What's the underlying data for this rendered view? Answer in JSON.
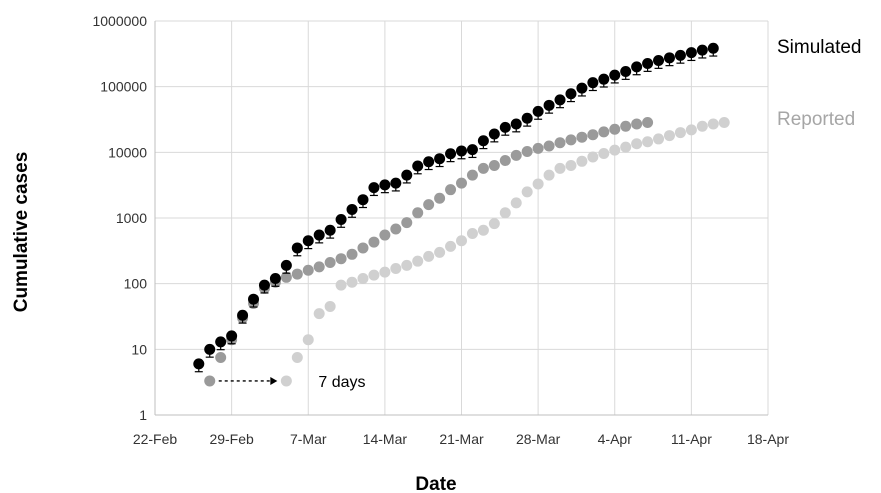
{
  "chart_data": {
    "type": "scatter",
    "title": "",
    "xlabel": "Date",
    "ylabel": "Cumulative cases",
    "yscale": "log",
    "ylim": [
      1,
      1000000
    ],
    "xlim": [
      "2020-02-22",
      "2020-04-18"
    ],
    "grid": true,
    "y_ticks": [
      "1",
      "10",
      "100",
      "1000",
      "10000",
      "100000",
      "1000000"
    ],
    "x_ticks": [
      "22-Feb",
      "29-Feb",
      "7-Mar",
      "14-Mar",
      "21-Mar",
      "28-Mar",
      "4-Apr",
      "11-Apr",
      "18-Apr"
    ],
    "legend_labels": [
      {
        "text": "Simulated",
        "color": "#000000"
      },
      {
        "text": "Reported",
        "color": "#a6a6a6"
      }
    ],
    "annotation": {
      "text": "7 days",
      "from": "2020-02-27",
      "to": "2020-03-05",
      "y": 3.3
    },
    "series": [
      {
        "color": "#000000",
        "error_bars": true,
        "points": [
          [
            "2020-02-26",
            6
          ],
          [
            "2020-02-27",
            10
          ],
          [
            "2020-02-28",
            13
          ],
          [
            "2020-02-29",
            16
          ],
          [
            "2020-03-01",
            33
          ],
          [
            "2020-03-02",
            58
          ],
          [
            "2020-03-03",
            95
          ],
          [
            "2020-03-04",
            120
          ],
          [
            "2020-03-05",
            190
          ],
          [
            "2020-03-06",
            350
          ],
          [
            "2020-03-07",
            450
          ],
          [
            "2020-03-08",
            550
          ],
          [
            "2020-03-09",
            650
          ],
          [
            "2020-03-10",
            950
          ],
          [
            "2020-03-11",
            1350
          ],
          [
            "2020-03-12",
            1900
          ],
          [
            "2020-03-13",
            2900
          ],
          [
            "2020-03-14",
            3200
          ],
          [
            "2020-03-15",
            3400
          ],
          [
            "2020-03-16",
            4500
          ],
          [
            "2020-03-17",
            6200
          ],
          [
            "2020-03-18",
            7200
          ],
          [
            "2020-03-19",
            8000
          ],
          [
            "2020-03-20",
            9500
          ],
          [
            "2020-03-21",
            10500
          ],
          [
            "2020-03-22",
            11000
          ],
          [
            "2020-03-23",
            15000
          ],
          [
            "2020-03-24",
            19000
          ],
          [
            "2020-03-25",
            24000
          ],
          [
            "2020-03-26",
            27000
          ],
          [
            "2020-03-27",
            33000
          ],
          [
            "2020-03-28",
            42000
          ],
          [
            "2020-03-29",
            52000
          ],
          [
            "2020-03-30",
            63000
          ],
          [
            "2020-03-31",
            78000
          ],
          [
            "2020-04-01",
            95000
          ],
          [
            "2020-04-02",
            115000
          ],
          [
            "2020-04-03",
            130000
          ],
          [
            "2020-04-04",
            150000
          ],
          [
            "2020-04-05",
            170000
          ],
          [
            "2020-04-06",
            200000
          ],
          [
            "2020-04-07",
            225000
          ],
          [
            "2020-04-08",
            250000
          ],
          [
            "2020-04-09",
            275000
          ],
          [
            "2020-04-10",
            300000
          ],
          [
            "2020-04-11",
            330000
          ],
          [
            "2020-04-12",
            360000
          ],
          [
            "2020-04-13",
            385000
          ]
        ]
      },
      {
        "color": "#9a9a9a",
        "error_bars": false,
        "points": [
          [
            "2020-02-27",
            3.3
          ],
          [
            "2020-02-28",
            7.5
          ],
          [
            "2020-02-29",
            14
          ],
          [
            "2020-03-01",
            30
          ],
          [
            "2020-03-02",
            50
          ],
          [
            "2020-03-03",
            85
          ],
          [
            "2020-03-04",
            105
          ],
          [
            "2020-03-05",
            125
          ],
          [
            "2020-03-06",
            140
          ],
          [
            "2020-03-07",
            160
          ],
          [
            "2020-03-08",
            180
          ],
          [
            "2020-03-09",
            210
          ],
          [
            "2020-03-10",
            240
          ],
          [
            "2020-03-11",
            280
          ],
          [
            "2020-03-12",
            350
          ],
          [
            "2020-03-13",
            430
          ],
          [
            "2020-03-14",
            550
          ],
          [
            "2020-03-15",
            680
          ],
          [
            "2020-03-16",
            850
          ],
          [
            "2020-03-17",
            1200
          ],
          [
            "2020-03-18",
            1600
          ],
          [
            "2020-03-19",
            2000
          ],
          [
            "2020-03-20",
            2700
          ],
          [
            "2020-03-21",
            3400
          ],
          [
            "2020-03-22",
            4500
          ],
          [
            "2020-03-23",
            5700
          ],
          [
            "2020-03-24",
            6300
          ],
          [
            "2020-03-25",
            7500
          ],
          [
            "2020-03-26",
            9000
          ],
          [
            "2020-03-27",
            10300
          ],
          [
            "2020-03-28",
            11500
          ],
          [
            "2020-03-29",
            12500
          ],
          [
            "2020-03-30",
            14000
          ],
          [
            "2020-03-31",
            15500
          ],
          [
            "2020-04-01",
            17000
          ],
          [
            "2020-04-02",
            18500
          ],
          [
            "2020-04-03",
            20500
          ],
          [
            "2020-04-04",
            22500
          ],
          [
            "2020-04-05",
            25000
          ],
          [
            "2020-04-06",
            27000
          ],
          [
            "2020-04-07",
            28500
          ]
        ]
      },
      {
        "color": "#d0d0d0",
        "error_bars": false,
        "points": [
          [
            "2020-03-05",
            3.3
          ],
          [
            "2020-03-06",
            7.5
          ],
          [
            "2020-03-07",
            14
          ],
          [
            "2020-03-08",
            35
          ],
          [
            "2020-03-09",
            45
          ],
          [
            "2020-03-10",
            95
          ],
          [
            "2020-03-11",
            105
          ],
          [
            "2020-03-12",
            120
          ],
          [
            "2020-03-13",
            135
          ],
          [
            "2020-03-14",
            150
          ],
          [
            "2020-03-15",
            170
          ],
          [
            "2020-03-16",
            190
          ],
          [
            "2020-03-17",
            220
          ],
          [
            "2020-03-18",
            260
          ],
          [
            "2020-03-19",
            300
          ],
          [
            "2020-03-20",
            370
          ],
          [
            "2020-03-21",
            450
          ],
          [
            "2020-03-22",
            580
          ],
          [
            "2020-03-23",
            650
          ],
          [
            "2020-03-24",
            820
          ],
          [
            "2020-03-25",
            1200
          ],
          [
            "2020-03-26",
            1700
          ],
          [
            "2020-03-27",
            2500
          ],
          [
            "2020-03-28",
            3300
          ],
          [
            "2020-03-29",
            4500
          ],
          [
            "2020-03-30",
            5700
          ],
          [
            "2020-03-31",
            6300
          ],
          [
            "2020-04-01",
            7300
          ],
          [
            "2020-04-02",
            8500
          ],
          [
            "2020-04-03",
            9600
          ],
          [
            "2020-04-04",
            10800
          ],
          [
            "2020-04-05",
            12000
          ],
          [
            "2020-04-06",
            13500
          ],
          [
            "2020-04-07",
            14500
          ],
          [
            "2020-04-08",
            16000
          ],
          [
            "2020-04-09",
            18000
          ],
          [
            "2020-04-10",
            20000
          ],
          [
            "2020-04-11",
            22000
          ],
          [
            "2020-04-12",
            25000
          ],
          [
            "2020-04-13",
            27000
          ],
          [
            "2020-04-14",
            28500
          ]
        ]
      }
    ]
  }
}
